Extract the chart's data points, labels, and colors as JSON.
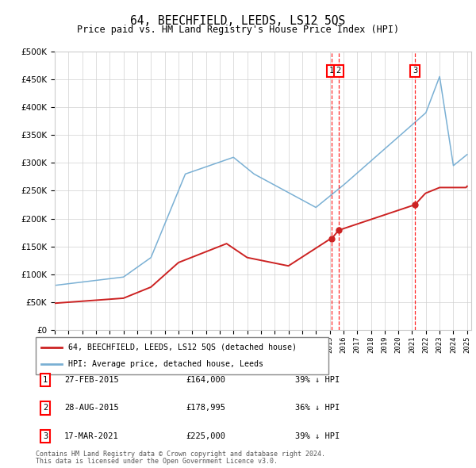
{
  "title": "64, BEECHFIELD, LEEDS, LS12 5QS",
  "subtitle": "Price paid vs. HM Land Registry's House Price Index (HPI)",
  "legend_label_red": "64, BEECHFIELD, LEEDS, LS12 5QS (detached house)",
  "legend_label_blue": "HPI: Average price, detached house, Leeds",
  "footer_line1": "Contains HM Land Registry data © Crown copyright and database right 2024.",
  "footer_line2": "This data is licensed under the Open Government Licence v3.0.",
  "sales": [
    {
      "label": "1",
      "date": "27-FEB-2015",
      "price": 164000,
      "pct": "39%",
      "x": 2015.15
    },
    {
      "label": "2",
      "date": "28-AUG-2015",
      "price": 178995,
      "pct": "36%",
      "x": 2015.65
    },
    {
      "label": "3",
      "date": "17-MAR-2021",
      "price": 225000,
      "pct": "39%",
      "x": 2021.21
    }
  ]
}
